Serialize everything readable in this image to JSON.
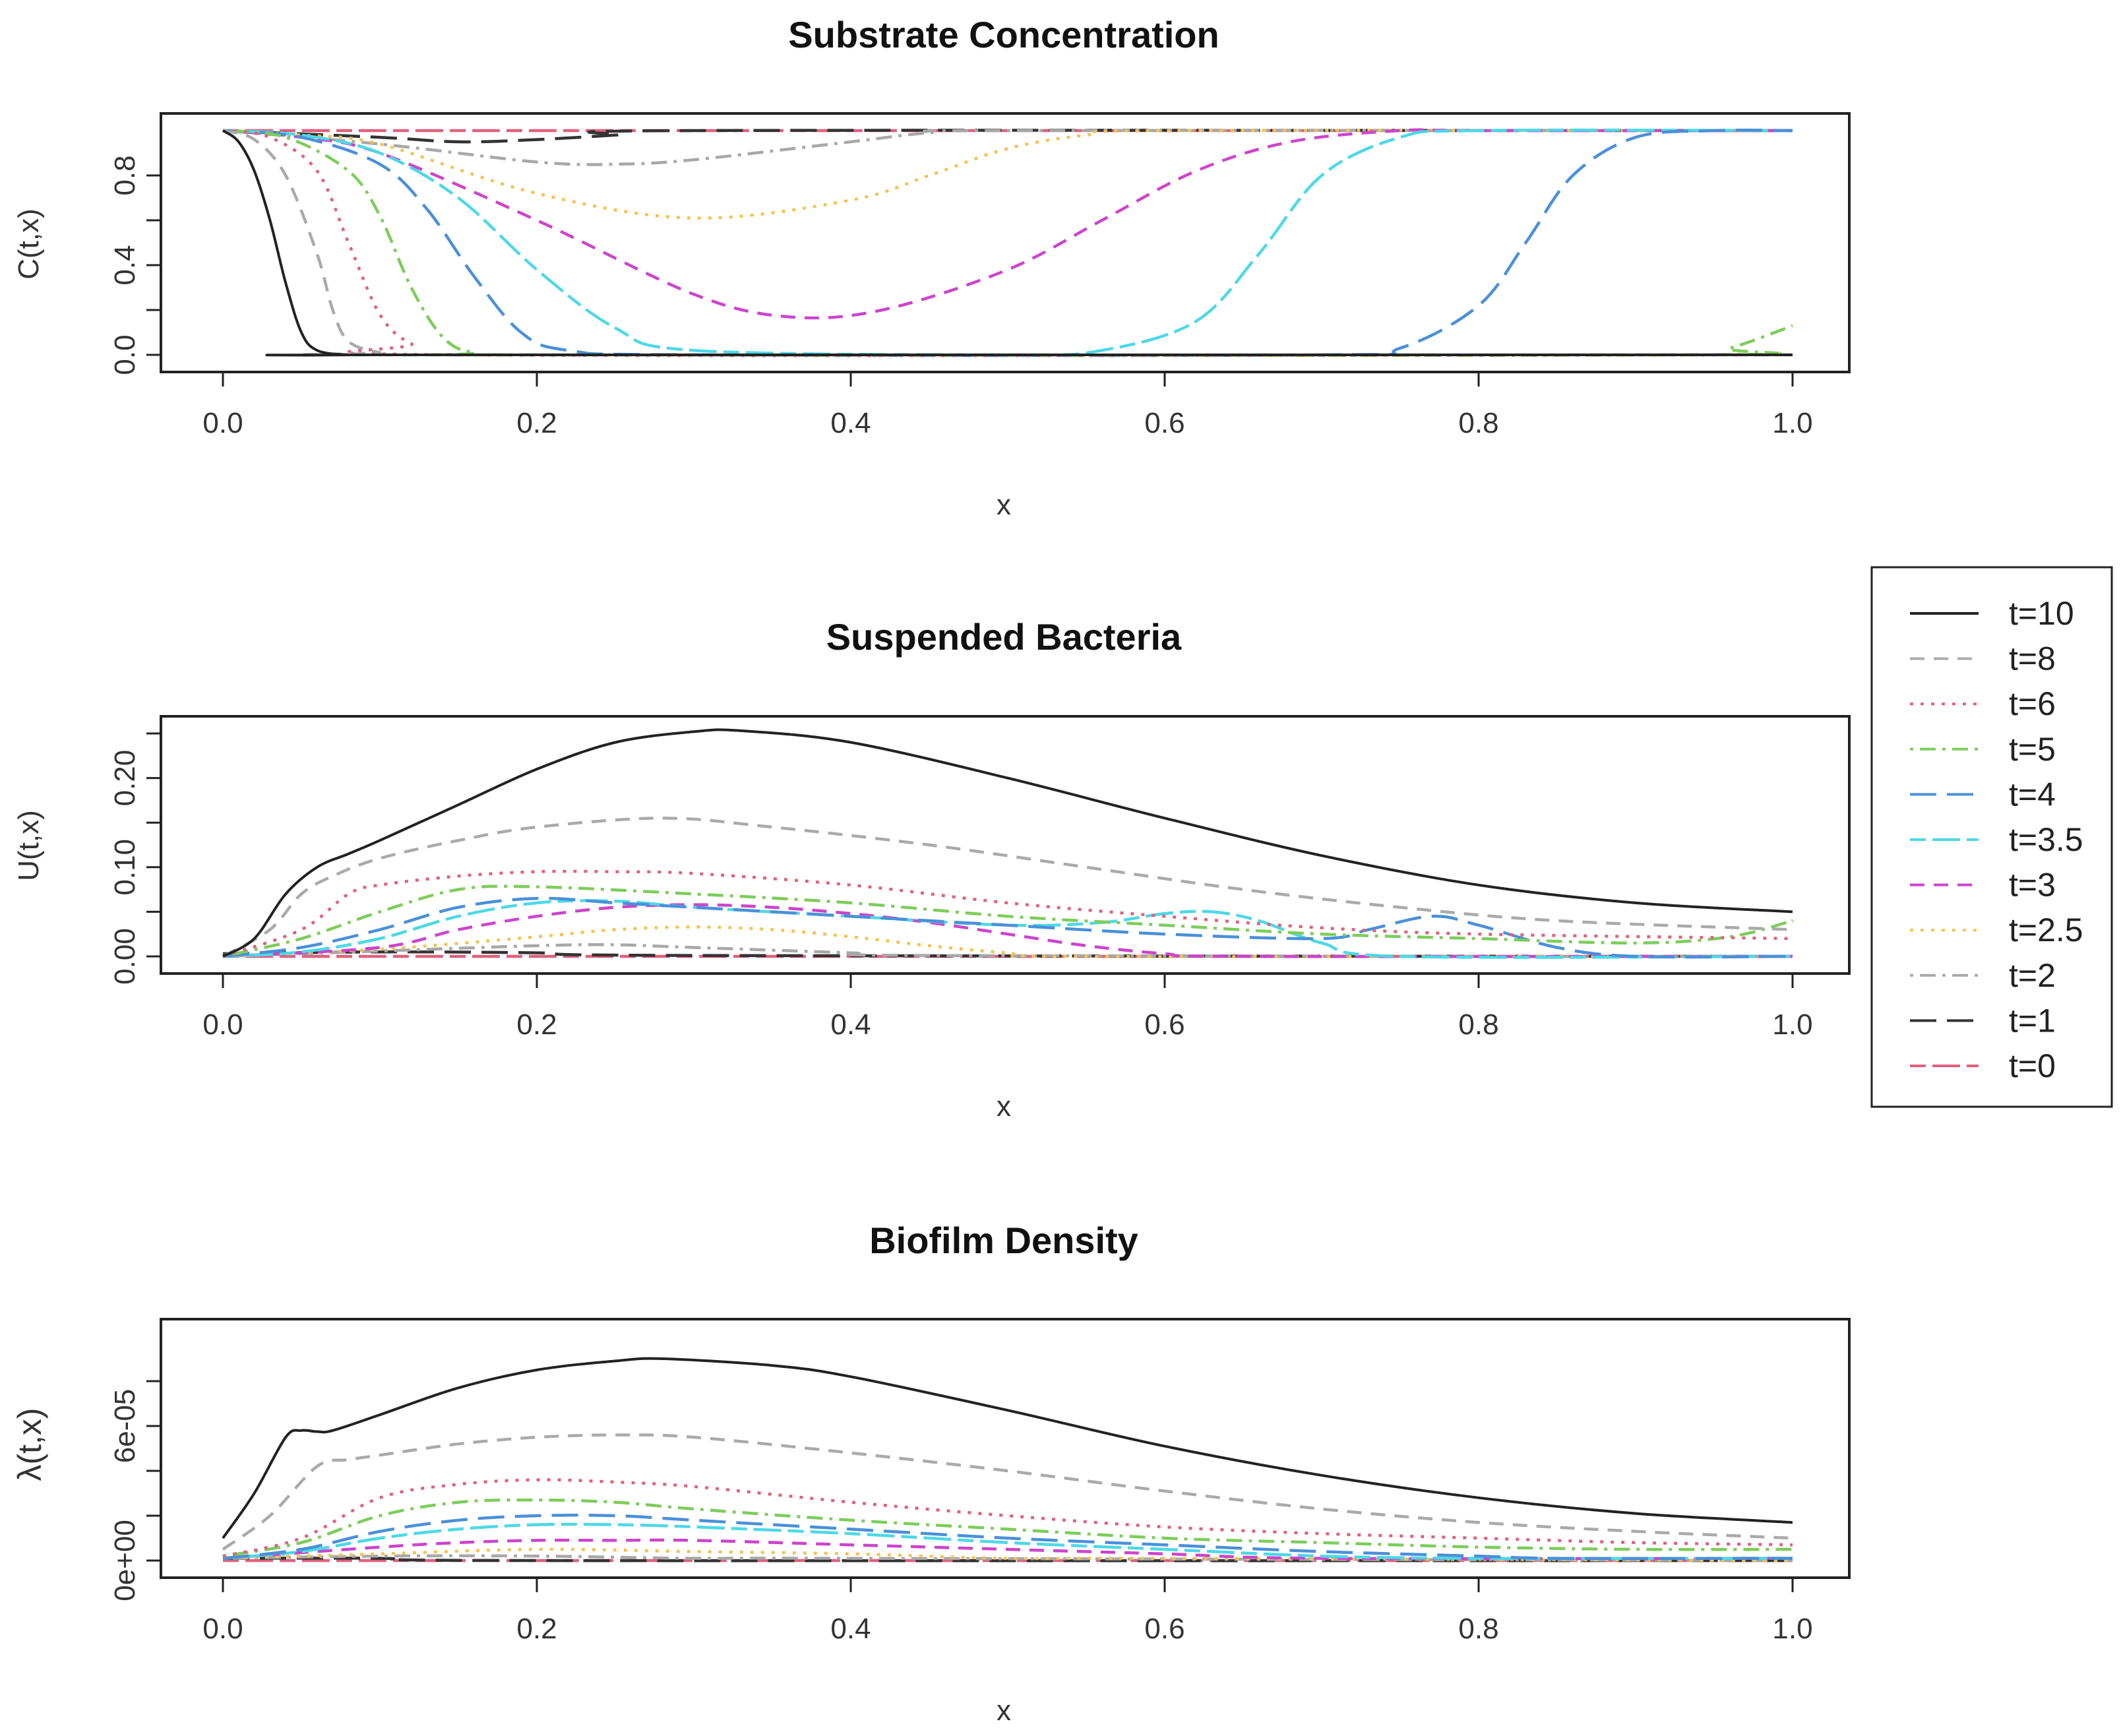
{
  "legend": {
    "placement": "right-middle",
    "entries": [
      {
        "label": "t=10",
        "color": "#222222",
        "dash": "solid"
      },
      {
        "label": "t=8",
        "color": "#aaaaaa",
        "dash": "dashed"
      },
      {
        "label": "t=6",
        "color": "#e0607e",
        "dash": "dotted"
      },
      {
        "label": "t=5",
        "color": "#7ccd5a",
        "dash": "dotdash"
      },
      {
        "label": "t=4",
        "color": "#4a90d9",
        "dash": "longdash"
      },
      {
        "label": "t=3.5",
        "color": "#4dd8e6",
        "dash": "twodash"
      },
      {
        "label": "t=3",
        "color": "#cc44cc",
        "dash": "dashed"
      },
      {
        "label": "t=2.5",
        "color": "#f5c24c",
        "dash": "dotted"
      },
      {
        "label": "t=2",
        "color": "#a8a8a8",
        "dash": "dotdash"
      },
      {
        "label": "t=1",
        "color": "#333333",
        "dash": "longdash"
      },
      {
        "label": "t=0",
        "color": "#e0607e",
        "dash": "twodash"
      }
    ]
  },
  "chart_data": [
    {
      "type": "line",
      "title": "Substrate Concentration",
      "xlabel": "x",
      "ylabel": "C(t,x)",
      "xlim": [
        0,
        1
      ],
      "ylim": [
        0,
        1
      ],
      "xticks": [
        0,
        0.2,
        0.4,
        0.6,
        0.8,
        1
      ],
      "xtick_labels": [
        "0.0",
        "0.2",
        "0.4",
        "0.6",
        "0.8",
        "1.0"
      ],
      "yticks": [
        0,
        0.4,
        0.8
      ],
      "ytick_labels": [
        "0.0",
        "0.4",
        "0.8"
      ],
      "yminor": [
        0.2,
        0.6
      ],
      "series": [
        {
          "name": "t=10",
          "x": [
            0,
            0.01,
            0.02,
            0.03,
            0.04,
            0.05,
            0.06,
            0.08,
            0.1,
            1
          ],
          "y": [
            1,
            0.95,
            0.82,
            0.6,
            0.32,
            0.1,
            0.02,
            0,
            0,
            0
          ]
        },
        {
          "name": "t=8",
          "x": [
            0,
            0.02,
            0.04,
            0.06,
            0.07,
            0.08,
            0.1,
            0.12,
            1
          ],
          "y": [
            1,
            0.96,
            0.8,
            0.45,
            0.2,
            0.06,
            0.01,
            0,
            0
          ]
        },
        {
          "name": "t=6",
          "x": [
            0,
            0.03,
            0.06,
            0.08,
            0.1,
            0.12,
            0.15,
            1
          ],
          "y": [
            1,
            0.97,
            0.82,
            0.5,
            0.18,
            0.05,
            0,
            0
          ]
        },
        {
          "name": "t=5",
          "x": [
            0,
            0.04,
            0.08,
            0.1,
            0.12,
            0.14,
            0.16,
            0.2,
            0.93,
            0.96,
            1
          ],
          "y": [
            1,
            0.97,
            0.82,
            0.62,
            0.3,
            0.08,
            0.01,
            0,
            0,
            0.03,
            0.13
          ]
        },
        {
          "name": "t=4",
          "x": [
            0,
            0.05,
            0.1,
            0.13,
            0.16,
            0.19,
            0.22,
            0.3,
            0.7,
            0.75,
            0.8,
            0.83,
            0.86,
            0.9,
            0.95,
            1
          ],
          "y": [
            1,
            0.97,
            0.85,
            0.65,
            0.35,
            0.1,
            0.02,
            0,
            0,
            0.03,
            0.22,
            0.5,
            0.8,
            0.97,
            1,
            1
          ]
        },
        {
          "name": "t=3.5",
          "x": [
            0,
            0.05,
            0.1,
            0.15,
            0.2,
            0.25,
            0.3,
            0.5,
            0.56,
            0.62,
            0.66,
            0.7,
            0.75,
            0.8,
            1
          ],
          "y": [
            1,
            0.98,
            0.9,
            0.7,
            0.38,
            0.12,
            0.02,
            0,
            0.02,
            0.15,
            0.45,
            0.8,
            0.97,
            1,
            1
          ]
        },
        {
          "name": "t=3",
          "x": [
            0,
            0.05,
            0.1,
            0.2,
            0.3,
            0.36,
            0.42,
            0.5,
            0.56,
            0.62,
            0.68,
            0.75,
            0.8,
            1
          ],
          "y": [
            1,
            0.97,
            0.9,
            0.6,
            0.27,
            0.17,
            0.2,
            0.38,
            0.6,
            0.82,
            0.95,
            1,
            1,
            1
          ]
        },
        {
          "name": "t=2.5",
          "x": [
            0,
            0.05,
            0.1,
            0.2,
            0.3,
            0.4,
            0.45,
            0.5,
            0.55,
            0.6,
            1
          ],
          "y": [
            1,
            0.98,
            0.94,
            0.72,
            0.61,
            0.69,
            0.8,
            0.92,
            0.98,
            1,
            1
          ]
        },
        {
          "name": "t=2",
          "x": [
            0,
            0.1,
            0.2,
            0.25,
            0.3,
            0.4,
            0.45,
            0.5,
            1
          ],
          "y": [
            1,
            0.94,
            0.86,
            0.85,
            0.87,
            0.95,
            0.99,
            1,
            1
          ]
        },
        {
          "name": "t=1",
          "x": [
            0,
            0.1,
            0.15,
            0.2,
            0.25,
            0.3,
            1
          ],
          "y": [
            1,
            0.97,
            0.95,
            0.96,
            0.98,
            1,
            1
          ]
        },
        {
          "name": "t=0",
          "x": [
            0,
            1
          ],
          "y": [
            1,
            1
          ]
        }
      ]
    },
    {
      "type": "line",
      "title": "Suspended Bacteria",
      "xlabel": "x",
      "ylabel": "U(t,x)",
      "xlim": [
        0,
        1
      ],
      "ylim": [
        0,
        0.25
      ],
      "xticks": [
        0,
        0.2,
        0.4,
        0.6,
        0.8,
        1
      ],
      "xtick_labels": [
        "0.0",
        "0.2",
        "0.4",
        "0.6",
        "0.8",
        "1.0"
      ],
      "yticks": [
        0,
        0.1,
        0.2
      ],
      "ytick_labels": [
        "0.00",
        "0.10",
        "0.20"
      ],
      "yminor": [
        0.05,
        0.15,
        0.25
      ],
      "series": [
        {
          "name": "t=10",
          "x": [
            0,
            0.02,
            0.04,
            0.06,
            0.08,
            0.1,
            0.15,
            0.2,
            0.25,
            0.3,
            0.33,
            0.4,
            0.5,
            0.6,
            0.7,
            0.8,
            0.9,
            1
          ],
          "y": [
            0,
            0.02,
            0.07,
            0.1,
            0.115,
            0.13,
            0.17,
            0.21,
            0.24,
            0.252,
            0.253,
            0.24,
            0.2,
            0.155,
            0.113,
            0.08,
            0.06,
            0.05
          ]
        },
        {
          "name": "t=8",
          "x": [
            0,
            0.03,
            0.05,
            0.07,
            0.1,
            0.15,
            0.2,
            0.28,
            0.35,
            0.45,
            0.55,
            0.65,
            0.75,
            0.85,
            1
          ],
          "y": [
            0,
            0.03,
            0.07,
            0.09,
            0.11,
            0.13,
            0.145,
            0.155,
            0.145,
            0.125,
            0.1,
            0.075,
            0.055,
            0.04,
            0.03
          ]
        },
        {
          "name": "t=6",
          "x": [
            0,
            0.05,
            0.08,
            0.1,
            0.15,
            0.2,
            0.25,
            0.3,
            0.4,
            0.5,
            0.6,
            0.7,
            0.8,
            1
          ],
          "y": [
            0,
            0.03,
            0.07,
            0.08,
            0.09,
            0.095,
            0.095,
            0.093,
            0.08,
            0.06,
            0.045,
            0.032,
            0.025,
            0.02
          ]
        },
        {
          "name": "t=5",
          "x": [
            0,
            0.05,
            0.1,
            0.15,
            0.2,
            0.3,
            0.4,
            0.5,
            0.6,
            0.7,
            0.8,
            0.9,
            0.96,
            1
          ],
          "y": [
            0,
            0.02,
            0.05,
            0.075,
            0.078,
            0.07,
            0.06,
            0.045,
            0.035,
            0.025,
            0.02,
            0.015,
            0.022,
            0.04
          ]
        },
        {
          "name": "t=4",
          "x": [
            0,
            0.05,
            0.1,
            0.15,
            0.2,
            0.25,
            0.3,
            0.4,
            0.5,
            0.6,
            0.7,
            0.73,
            0.77,
            0.8,
            0.85,
            0.9,
            1
          ],
          "y": [
            0,
            0.01,
            0.03,
            0.055,
            0.065,
            0.06,
            0.055,
            0.045,
            0.035,
            0.025,
            0.02,
            0.03,
            0.045,
            0.035,
            0.01,
            0,
            0
          ]
        },
        {
          "name": "t=3.5",
          "x": [
            0,
            0.05,
            0.1,
            0.15,
            0.2,
            0.25,
            0.3,
            0.4,
            0.5,
            0.56,
            0.6,
            0.63,
            0.66,
            0.7,
            0.75,
            1
          ],
          "y": [
            0,
            0.005,
            0.02,
            0.045,
            0.06,
            0.062,
            0.055,
            0.045,
            0.035,
            0.038,
            0.048,
            0.05,
            0.04,
            0.015,
            0,
            0
          ]
        },
        {
          "name": "t=3",
          "x": [
            0,
            0.1,
            0.15,
            0.2,
            0.25,
            0.3,
            0.35,
            0.4,
            0.45,
            0.5,
            0.55,
            0.6,
            0.65,
            1
          ],
          "y": [
            0,
            0.01,
            0.03,
            0.045,
            0.055,
            0.058,
            0.055,
            0.048,
            0.038,
            0.025,
            0.012,
            0.003,
            0,
            0
          ]
        },
        {
          "name": "t=2.5",
          "x": [
            0,
            0.1,
            0.2,
            0.25,
            0.3,
            0.35,
            0.4,
            0.45,
            0.5,
            0.55,
            1
          ],
          "y": [
            0,
            0.008,
            0.022,
            0.03,
            0.033,
            0.03,
            0.022,
            0.012,
            0.004,
            0,
            0
          ]
        },
        {
          "name": "t=2",
          "x": [
            0,
            0.1,
            0.2,
            0.25,
            0.3,
            0.4,
            0.45,
            1
          ],
          "y": [
            0,
            0.006,
            0.012,
            0.013,
            0.01,
            0.004,
            0.001,
            0
          ]
        },
        {
          "name": "t=1",
          "x": [
            0,
            0.1,
            0.2,
            0.3,
            1
          ],
          "y": [
            0.003,
            0.005,
            0.004,
            0.001,
            0
          ]
        },
        {
          "name": "t=0",
          "x": [
            0,
            1
          ],
          "y": [
            0,
            0
          ]
        }
      ]
    },
    {
      "type": "line",
      "title": "Biofilm Density",
      "xlabel": "x",
      "ylabel": "λ(t,x)",
      "xlim": [
        0,
        1
      ],
      "ylim": [
        0,
        0.0001
      ],
      "xticks": [
        0,
        0.2,
        0.4,
        0.6,
        0.8,
        1
      ],
      "xtick_labels": [
        "0.0",
        "0.2",
        "0.4",
        "0.6",
        "0.8",
        "1.0"
      ],
      "yticks": [
        0,
        6e-05
      ],
      "ytick_labels": [
        "0e+00",
        "6e-05"
      ],
      "yminor": [
        2e-05,
        4e-05,
        8e-05
      ],
      "series": [
        {
          "name": "t=10",
          "x": [
            0,
            0.02,
            0.04,
            0.05,
            0.06,
            0.07,
            0.1,
            0.15,
            0.2,
            0.25,
            0.28,
            0.35,
            0.4,
            0.5,
            0.6,
            0.7,
            0.8,
            0.9,
            1
          ],
          "y": [
            1e-05,
            3e-05,
            5.5e-05,
            5.8e-05,
            5.75e-05,
            5.8e-05,
            6.5e-05,
            7.7e-05,
            8.5e-05,
            8.9e-05,
            9e-05,
            8.7e-05,
            8.2e-05,
            6.7e-05,
            5.1e-05,
            3.8e-05,
            2.8e-05,
            2.1e-05,
            1.7e-05
          ]
        },
        {
          "name": "t=8",
          "x": [
            0,
            0.03,
            0.06,
            0.08,
            0.1,
            0.15,
            0.2,
            0.25,
            0.3,
            0.4,
            0.5,
            0.6,
            0.7,
            0.8,
            0.9,
            1
          ],
          "y": [
            5e-06,
            2e-05,
            4.2e-05,
            4.5e-05,
            4.7e-05,
            5.2e-05,
            5.5e-05,
            5.6e-05,
            5.5e-05,
            4.8e-05,
            4e-05,
            3.1e-05,
            2.3e-05,
            1.7e-05,
            1.3e-05,
            1e-05
          ]
        },
        {
          "name": "t=6",
          "x": [
            0,
            0.05,
            0.1,
            0.15,
            0.2,
            0.25,
            0.3,
            0.4,
            0.5,
            0.6,
            0.7,
            0.8,
            0.9,
            1
          ],
          "y": [
            2e-06,
            1e-05,
            2.8e-05,
            3.4e-05,
            3.6e-05,
            3.5e-05,
            3.3e-05,
            2.6e-05,
            2e-05,
            1.5e-05,
            1.2e-05,
            1e-05,
            8e-06,
            7e-06
          ]
        },
        {
          "name": "t=5",
          "x": [
            0,
            0.05,
            0.1,
            0.15,
            0.2,
            0.25,
            0.3,
            0.4,
            0.5,
            0.6,
            0.7,
            0.8,
            0.9,
            1
          ],
          "y": [
            2e-06,
            8e-06,
            2e-05,
            2.6e-05,
            2.7e-05,
            2.6e-05,
            2.3e-05,
            1.8e-05,
            1.4e-05,
            1e-05,
            8e-06,
            6e-06,
            5e-06,
            5e-06
          ]
        },
        {
          "name": "t=4",
          "x": [
            0,
            0.05,
            0.1,
            0.15,
            0.2,
            0.25,
            0.3,
            0.4,
            0.5,
            0.6,
            0.7,
            0.8,
            0.85,
            1
          ],
          "y": [
            1e-06,
            5e-06,
            1.3e-05,
            1.8e-05,
            2e-05,
            2e-05,
            1.8e-05,
            1.4e-05,
            1e-05,
            7e-06,
            4e-06,
            2e-06,
            1e-06,
            1e-06
          ]
        },
        {
          "name": "t=3.5",
          "x": [
            0,
            0.05,
            0.1,
            0.15,
            0.2,
            0.25,
            0.3,
            0.4,
            0.5,
            0.6,
            0.7,
            0.8,
            1
          ],
          "y": [
            1e-06,
            4e-06,
            1e-05,
            1.4e-05,
            1.6e-05,
            1.6e-05,
            1.5e-05,
            1.2e-05,
            8e-06,
            5e-06,
            2e-06,
            1e-06,
            1e-06
          ]
        },
        {
          "name": "t=3",
          "x": [
            0,
            0.1,
            0.15,
            0.2,
            0.25,
            0.3,
            0.4,
            0.5,
            0.6,
            0.7,
            1
          ],
          "y": [
            1e-06,
            6e-06,
            8e-06,
            9e-06,
            9e-06,
            9e-06,
            7e-06,
            5e-06,
            3e-06,
            1e-06,
            1e-06
          ]
        },
        {
          "name": "t=2.5",
          "x": [
            0,
            0.1,
            0.2,
            0.3,
            0.4,
            0.5,
            0.6,
            1
          ],
          "y": [
            1e-06,
            3e-06,
            5e-06,
            4e-06,
            3e-06,
            1e-06,
            1e-06,
            0
          ]
        },
        {
          "name": "t=2",
          "x": [
            0,
            0.1,
            0.2,
            0.3,
            0.4,
            1
          ],
          "y": [
            1e-06,
            2e-06,
            2e-06,
            1e-06,
            1e-06,
            0
          ]
        },
        {
          "name": "t=1",
          "x": [
            0,
            0.1,
            0.2,
            1
          ],
          "y": [
            1e-06,
            1e-06,
            0,
            0
          ]
        },
        {
          "name": "t=0",
          "x": [
            0,
            1
          ],
          "y": [
            0,
            0
          ]
        }
      ]
    }
  ]
}
